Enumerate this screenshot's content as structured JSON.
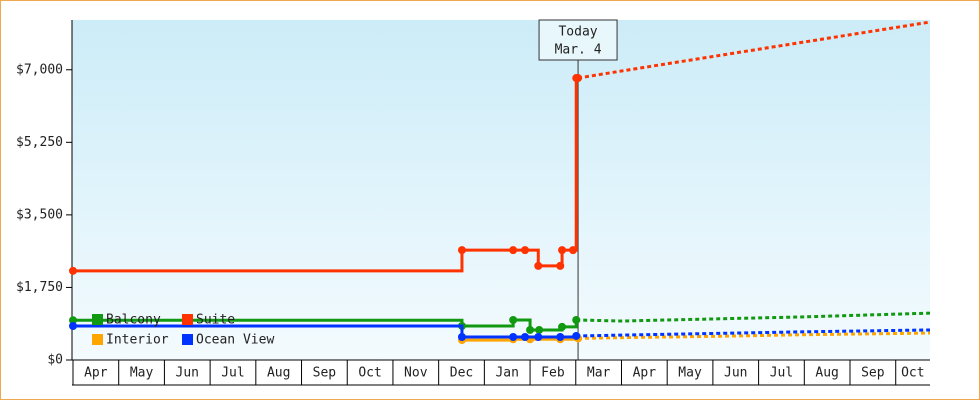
{
  "chart_data": {
    "type": "line",
    "xlim": [
      0,
      18.75
    ],
    "xticks": [
      {
        "value": 0,
        "label": "Apr"
      },
      {
        "value": 1,
        "label": "May"
      },
      {
        "value": 2,
        "label": "Jun"
      },
      {
        "value": 3,
        "label": "Jul"
      },
      {
        "value": 4,
        "label": "Aug"
      },
      {
        "value": 5,
        "label": "Sep"
      },
      {
        "value": 6,
        "label": "Oct"
      },
      {
        "value": 7,
        "label": "Nov"
      },
      {
        "value": 8,
        "label": "Dec"
      },
      {
        "value": 9,
        "label": "Jan"
      },
      {
        "value": 10,
        "label": "Feb"
      },
      {
        "value": 11,
        "label": "Mar"
      },
      {
        "value": 12,
        "label": "Apr"
      },
      {
        "value": 13,
        "label": "May"
      },
      {
        "value": 14,
        "label": "Jun"
      },
      {
        "value": 15,
        "label": "Jul"
      },
      {
        "value": 16,
        "label": "Aug"
      },
      {
        "value": 17,
        "label": "Sep"
      },
      {
        "value": 18,
        "label": "Oct"
      }
    ],
    "ylim": [
      0,
      8200
    ],
    "yticks": [
      {
        "value": 0,
        "label": "$0"
      },
      {
        "value": 1750,
        "label": "$1,750"
      },
      {
        "value": 3500,
        "label": "$3,500"
      },
      {
        "value": 5250,
        "label": "$5,250"
      },
      {
        "value": 7000,
        "label": "$7,000"
      }
    ],
    "legend": "lower left",
    "annotation": {
      "x": 11.05,
      "text": [
        "Today",
        "Mar. 4"
      ]
    },
    "series": [
      {
        "name": "Balcony",
        "color": "#119911",
        "x": [
          0,
          8.51,
          9.63,
          10.0,
          10.2,
          10.7,
          11.01,
          12,
          14,
          16,
          18.75
        ],
        "values": [
          960,
          820,
          965,
          725,
          725,
          800,
          965,
          940,
          990,
          1040,
          1130
        ]
      },
      {
        "name": "Suite",
        "color": "#ff3300",
        "x": [
          0,
          8.51,
          9.63,
          9.89,
          10.18,
          10.66,
          10.7,
          10.94,
          11.01,
          11.05,
          12,
          14,
          16,
          18.75
        ],
        "values": [
          2150,
          2650,
          2650,
          2650,
          2270,
          2270,
          2650,
          2650,
          6800,
          6800,
          6970,
          7320,
          7670,
          8150
        ]
      },
      {
        "name": "Interior",
        "color": "#ffa500",
        "x": [
          8.51,
          9.63,
          10.0,
          10.66,
          11.05,
          12,
          14,
          16,
          18.75
        ],
        "values": [
          480,
          500,
          500,
          500,
          520,
          540,
          570,
          610,
          650
        ]
      },
      {
        "name": "Ocean View",
        "color": "#0033ff",
        "x": [
          0,
          8.51,
          9.63,
          9.89,
          10.18,
          10.66,
          11.01,
          12,
          14,
          16,
          18.75
        ],
        "values": [
          820,
          555,
          555,
          555,
          555,
          555,
          580,
          600,
          640,
          680,
          725
        ]
      }
    ]
  }
}
